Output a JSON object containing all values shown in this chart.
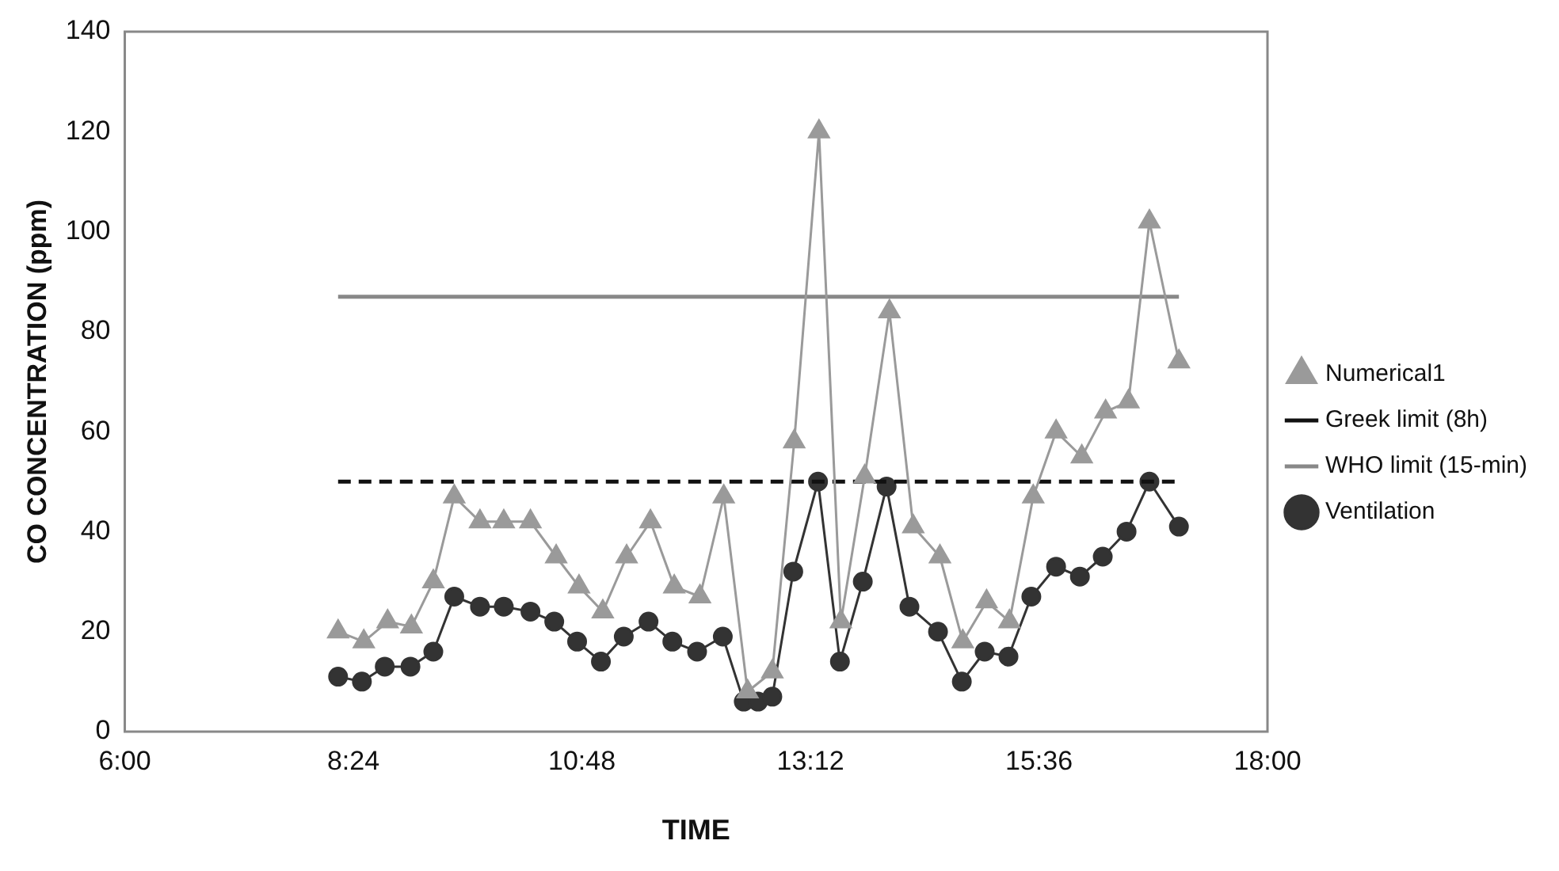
{
  "chart_data": {
    "type": "line",
    "xlabel": "TIME",
    "ylabel": "CO CONCENTRATION (ppm)",
    "xlim": [
      6,
      18
    ],
    "xticks": [
      {
        "value": 6,
        "label": "6:00"
      },
      {
        "value": 8.4,
        "label": "8:24"
      },
      {
        "value": 10.8,
        "label": "10:48"
      },
      {
        "value": 13.2,
        "label": "13:12"
      },
      {
        "value": 15.6,
        "label": "15:36"
      },
      {
        "value": 18,
        "label": "18:00"
      }
    ],
    "ylim": [
      0,
      140
    ],
    "yticks": [
      0,
      20,
      40,
      60,
      80,
      100,
      120,
      140
    ],
    "grid": false,
    "legend": "right",
    "series": [
      {
        "name": "Numerical1",
        "color": "#9a9a9a",
        "marker": "triangle",
        "x": [
          8.24,
          8.51,
          8.76,
          9.01,
          9.24,
          9.46,
          9.73,
          9.98,
          10.26,
          10.53,
          10.77,
          11.02,
          11.27,
          11.52,
          11.77,
          12.04,
          12.29,
          12.54,
          12.8,
          13.03,
          13.29,
          13.52,
          13.77,
          14.03,
          14.28,
          14.56,
          14.8,
          15.05,
          15.29,
          15.54,
          15.78,
          16.05,
          16.3,
          16.54,
          16.76,
          17.07
        ],
        "values": [
          20,
          18,
          22,
          21,
          30,
          47,
          42,
          42,
          42,
          35,
          29,
          24,
          35,
          42,
          29,
          27,
          47,
          8,
          12,
          58,
          120,
          22,
          51,
          84,
          41,
          35,
          18,
          26,
          22,
          47,
          60,
          55,
          64,
          66,
          102,
          74
        ]
      },
      {
        "name": "Greek limit (8h)",
        "color": "#111111",
        "marker": "none",
        "line_style": "dashed",
        "x": [
          8.24,
          17.07
        ],
        "values": [
          50,
          50
        ]
      },
      {
        "name": "WHO limit (15-min)",
        "color": "#888888",
        "marker": "none",
        "x": [
          8.24,
          17.07
        ],
        "values": [
          87,
          87
        ]
      },
      {
        "name": "Ventilation",
        "color": "#333333",
        "marker": "circle",
        "x": [
          8.24,
          8.49,
          8.73,
          9.0,
          9.24,
          9.46,
          9.73,
          9.98,
          10.26,
          10.51,
          10.75,
          11.0,
          11.24,
          11.5,
          11.75,
          12.01,
          12.28,
          12.5,
          12.65,
          12.8,
          13.02,
          13.28,
          13.51,
          13.75,
          14.0,
          14.24,
          14.54,
          14.79,
          15.03,
          15.28,
          15.52,
          15.78,
          16.03,
          16.27,
          16.52,
          16.76,
          17.07
        ],
        "values": [
          11,
          10,
          13,
          13,
          16,
          27,
          25,
          25,
          24,
          22,
          18,
          14,
          19,
          22,
          18,
          16,
          19,
          6,
          6,
          7,
          32,
          50,
          14,
          30,
          49,
          25,
          20,
          10,
          16,
          15,
          27,
          33,
          31,
          35,
          40,
          50,
          41
        ]
      }
    ]
  }
}
